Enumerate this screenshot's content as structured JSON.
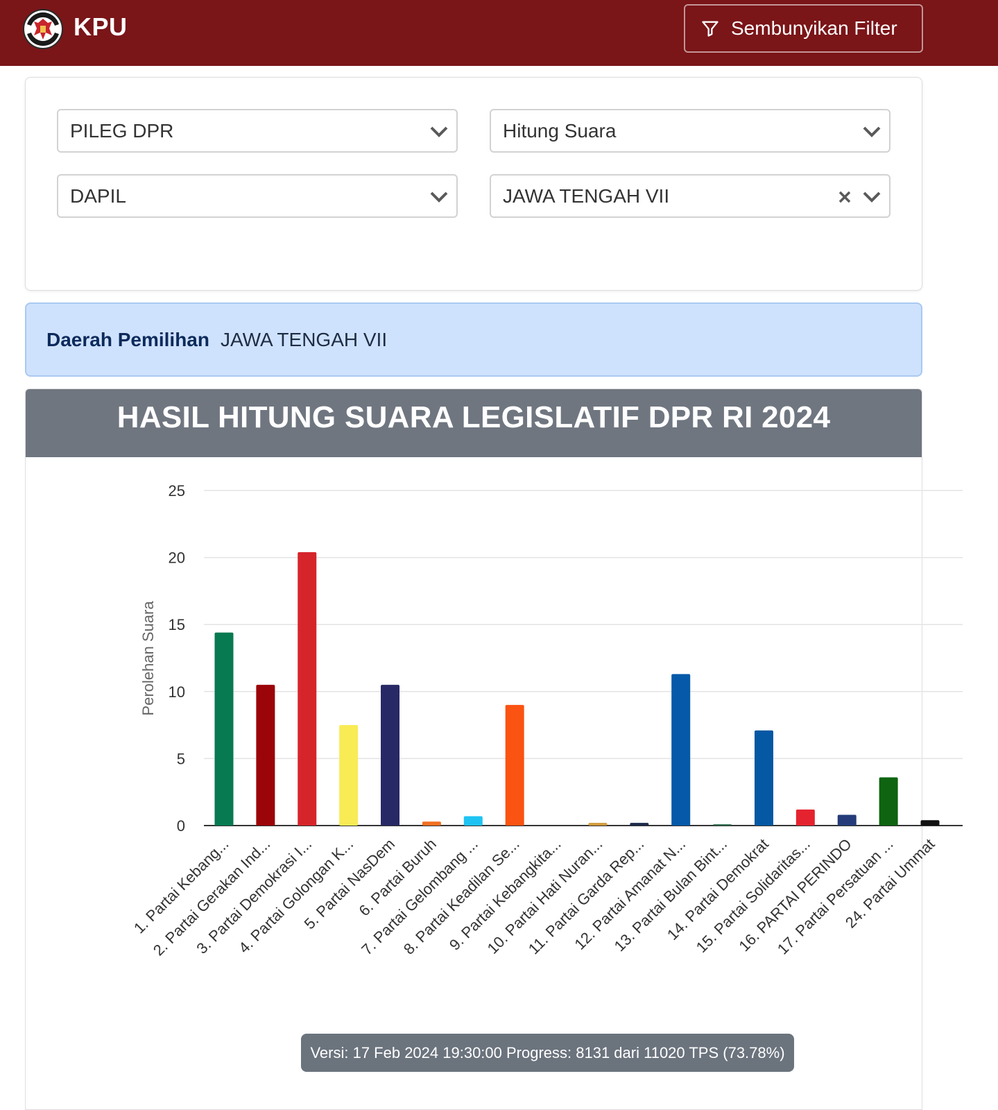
{
  "header": {
    "brand": "KPU",
    "filter_button_label": "Sembunyikan Filter"
  },
  "filters": {
    "election_type": "PILEG DPR",
    "count_type": "Hitung Suara",
    "region_level": "DAPIL",
    "region_value": "JAWA TENGAH VII"
  },
  "info": {
    "label": "Daerah Pemilihan",
    "value": "JAWA TENGAH VII"
  },
  "chart_title": "HASIL HITUNG SUARA LEGISLATIF DPR RI 2024",
  "chart_data": {
    "type": "bar",
    "title": "HASIL HITUNG SUARA LEGISLATIF DPR RI 2024",
    "xlabel": "",
    "ylabel": "Perolehan Suara",
    "ylim": [
      0,
      25
    ],
    "yticks": [
      0,
      5,
      10,
      15,
      20,
      25
    ],
    "grid": true,
    "categories": [
      "1. Partai Kebang...",
      "2. Partai Gerakan Ind...",
      "3. Partai Demokrasi I...",
      "4. Partai Golongan K...",
      "5. Partai NasDem",
      "6. Partai Buruh",
      "7. Partai Gelombang ...",
      "8. Partai Keadilan Se...",
      "9. Partai Kebangkita...",
      "10. Partai Hati Nuran...",
      "11. Partai Garda Rep...",
      "12. Partai Amanat N...",
      "13. Partai Bulan Bint...",
      "14. Partai Demokrat",
      "15. Partai Solidaritas...",
      "16. PARTAI PERINDO",
      "17. Partai Persatuan ...",
      "24. Partai Ummat"
    ],
    "values": [
      14.4,
      10.5,
      20.4,
      7.5,
      10.5,
      0.3,
      0.7,
      9.0,
      0.0,
      0.2,
      0.2,
      11.3,
      0.1,
      7.1,
      1.2,
      0.8,
      3.6,
      0.4
    ],
    "colors": [
      "#077a51",
      "#9b0409",
      "#d6242b",
      "#f9eb54",
      "#272866",
      "#f36f21",
      "#1fc3f3",
      "#fa5312",
      "#00633b",
      "#d29a3a",
      "#1c2a4a",
      "#0559a8",
      "#2a6a4a",
      "#0558a3",
      "#e5232f",
      "#243c79",
      "#0e6410",
      "#111111"
    ]
  },
  "footer": {
    "version_text": "Versi: 17 Feb 2024 19:30:00 Progress: 8131 dari 11020 TPS (73.78%)"
  }
}
